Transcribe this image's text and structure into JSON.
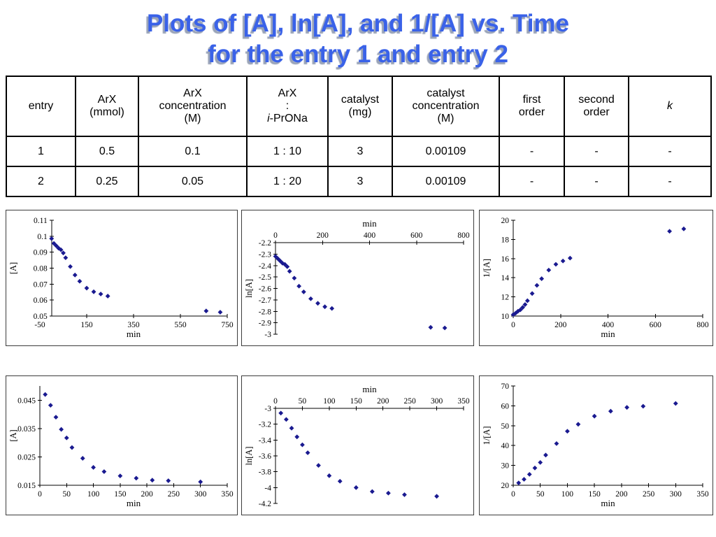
{
  "title": {
    "line1": "Plots of [A], ln[A], and 1/[A] vs. Time",
    "line2": "for the entry 1 and entry 2"
  },
  "colors": {
    "title_blue": "#3A62E8",
    "title_shadow": "#9AA4B8",
    "marker": "#1A1A90",
    "axis": "#000000"
  },
  "table": {
    "headers": {
      "entry": "entry",
      "arx_mmol": "ArX\n(mmol)",
      "arx_conc": "ArX\nconcentration\n(M)",
      "arx_ratio_line1": "ArX",
      "arx_ratio_line2": ":",
      "arx_ratio_italic": "i",
      "arx_ratio_rest": "-PrONa",
      "catalyst_mg": "catalyst\n(mg)",
      "catalyst_conc": "catalyst\nconcentration\n(M)",
      "first_order": "first\norder",
      "second_order": "second\norder",
      "k": "k"
    },
    "rows": [
      [
        "1",
        "0.5",
        "0.1",
        "1 : 10",
        "3",
        "0.00109",
        "-",
        "-",
        "-"
      ],
      [
        "2",
        "0.25",
        "0.05",
        "1 : 20",
        "3",
        "0.00109",
        "-",
        "-",
        "-"
      ]
    ]
  },
  "chart_data": [
    {
      "name": "entry1_A_vs_time",
      "type": "scatter",
      "xlabel": "min",
      "ylabel": "[A]",
      "x_axis_position": "bottom",
      "xlim": [
        -50,
        750
      ],
      "x_tick_values": [
        -50,
        150,
        350,
        550,
        750
      ],
      "x_tick_labels": [
        "-50",
        "150",
        "350",
        "550",
        "750"
      ],
      "ylim": [
        0.05,
        0.11
      ],
      "y_tick_values": [
        0.05,
        0.06,
        0.07,
        0.08,
        0.09,
        0.1,
        0.11
      ],
      "y_tick_labels": [
        "0.05",
        "0.06",
        "0.07",
        "0.08",
        "0.09",
        "0.1",
        "0.11"
      ],
      "x": [
        0,
        10,
        20,
        30,
        40,
        50,
        60,
        80,
        100,
        120,
        150,
        180,
        210,
        240,
        660,
        720
      ],
      "y": [
        0.0985,
        0.0955,
        0.094,
        0.0925,
        0.0915,
        0.0895,
        0.0865,
        0.081,
        0.0757,
        0.0718,
        0.0675,
        0.0652,
        0.0638,
        0.0625,
        0.0532,
        0.0524
      ]
    },
    {
      "name": "entry1_lnA_vs_time",
      "type": "scatter",
      "xlabel": "min",
      "ylabel": "ln[A]",
      "x_axis_position": "top",
      "xlim": [
        0,
        800
      ],
      "x_tick_values": [
        0,
        200,
        400,
        600,
        800
      ],
      "x_tick_labels": [
        "0",
        "200",
        "400",
        "600",
        "800"
      ],
      "ylim": [
        -3,
        -2.2
      ],
      "y_tick_values": [
        -2.2,
        -2.3,
        -2.4,
        -2.5,
        -2.6,
        -2.7,
        -2.8,
        -2.9,
        -3
      ],
      "y_tick_labels": [
        "-2.2",
        "-2.3",
        "-2.4",
        "-2.5",
        "-2.6",
        "-2.7",
        "-2.8",
        "-2.9",
        "-3"
      ],
      "x": [
        0,
        10,
        20,
        30,
        40,
        50,
        60,
        80,
        100,
        120,
        150,
        180,
        210,
        240,
        660,
        720
      ],
      "y": [
        -2.32,
        -2.34,
        -2.36,
        -2.38,
        -2.39,
        -2.41,
        -2.45,
        -2.51,
        -2.58,
        -2.63,
        -2.69,
        -2.73,
        -2.76,
        -2.775,
        -2.94,
        -2.945
      ]
    },
    {
      "name": "entry1_invA_vs_time",
      "type": "scatter",
      "xlabel": "min",
      "ylabel": "1/[A]",
      "x_axis_position": "bottom",
      "xlim": [
        0,
        800
      ],
      "x_tick_values": [
        0,
        200,
        400,
        600,
        800
      ],
      "x_tick_labels": [
        "0",
        "200",
        "400",
        "600",
        "800"
      ],
      "ylim": [
        10,
        20
      ],
      "y_tick_values": [
        10,
        12,
        14,
        16,
        18,
        20
      ],
      "y_tick_labels": [
        "10",
        "12",
        "14",
        "16",
        "18",
        "20"
      ],
      "x": [
        0,
        10,
        20,
        30,
        40,
        50,
        60,
        80,
        100,
        120,
        150,
        180,
        210,
        240,
        660,
        720
      ],
      "y": [
        10.15,
        10.3,
        10.5,
        10.65,
        10.9,
        11.2,
        11.6,
        12.35,
        13.2,
        13.9,
        14.8,
        15.4,
        15.75,
        16.05,
        18.85,
        19.1
      ]
    },
    {
      "name": "entry2_A_vs_time",
      "type": "scatter",
      "xlabel": "min",
      "ylabel": "[A]",
      "x_axis_position": "bottom",
      "xlim": [
        0,
        350
      ],
      "x_tick_values": [
        0,
        50,
        100,
        150,
        200,
        250,
        300,
        350
      ],
      "x_tick_labels": [
        "0",
        "50",
        "100",
        "150",
        "200",
        "250",
        "300",
        "350"
      ],
      "ylim": [
        0.015,
        0.05
      ],
      "y_tick_values": [
        0.015,
        0.025,
        0.035,
        0.045
      ],
      "y_tick_labels": [
        "0.015",
        "0.025",
        "0.035",
        "0.045"
      ],
      "x": [
        10,
        20,
        30,
        40,
        50,
        60,
        80,
        100,
        120,
        150,
        180,
        210,
        240,
        300
      ],
      "y": [
        0.047,
        0.0432,
        0.039,
        0.0347,
        0.0317,
        0.0283,
        0.0245,
        0.0213,
        0.0198,
        0.0183,
        0.0175,
        0.0168,
        0.0166,
        0.0162
      ]
    },
    {
      "name": "entry2_lnA_vs_time",
      "type": "scatter",
      "xlabel": "min",
      "ylabel": "ln[A]",
      "x_axis_position": "top",
      "xlim": [
        0,
        350
      ],
      "x_tick_values": [
        0,
        50,
        100,
        150,
        200,
        250,
        300,
        350
      ],
      "x_tick_labels": [
        "0",
        "50",
        "100",
        "150",
        "200",
        "250",
        "300",
        "350"
      ],
      "ylim": [
        -4.2,
        -3
      ],
      "y_tick_values": [
        -3,
        -3.2,
        -3.4,
        -3.6,
        -3.8,
        -4,
        -4.2
      ],
      "y_tick_labels": [
        "-3",
        "-3.2",
        "-3.4",
        "-3.6",
        "-3.8",
        "-4",
        "-4.2"
      ],
      "x": [
        10,
        20,
        30,
        40,
        50,
        60,
        80,
        100,
        120,
        150,
        180,
        210,
        240,
        300
      ],
      "y": [
        -3.06,
        -3.14,
        -3.25,
        -3.36,
        -3.46,
        -3.56,
        -3.72,
        -3.85,
        -3.92,
        -4.0,
        -4.05,
        -4.07,
        -4.09,
        -4.11
      ]
    },
    {
      "name": "entry2_invA_vs_time",
      "type": "scatter",
      "xlabel": "min",
      "ylabel": "1/[A]",
      "x_axis_position": "bottom",
      "xlim": [
        0,
        350
      ],
      "x_tick_values": [
        0,
        50,
        100,
        150,
        200,
        250,
        300,
        350
      ],
      "x_tick_labels": [
        "0",
        "50",
        "100",
        "150",
        "200",
        "250",
        "300",
        "350"
      ],
      "ylim": [
        20,
        70
      ],
      "y_tick_values": [
        20,
        30,
        40,
        50,
        60,
        70
      ],
      "y_tick_labels": [
        "20",
        "30",
        "40",
        "50",
        "60",
        "70"
      ],
      "x": [
        10,
        20,
        30,
        40,
        50,
        60,
        80,
        100,
        120,
        150,
        180,
        210,
        240,
        300
      ],
      "y": [
        21.2,
        23.0,
        25.5,
        28.7,
        31.5,
        35.2,
        41.0,
        47.2,
        50.7,
        54.8,
        57.3,
        59.2,
        59.8,
        61.2
      ]
    }
  ]
}
